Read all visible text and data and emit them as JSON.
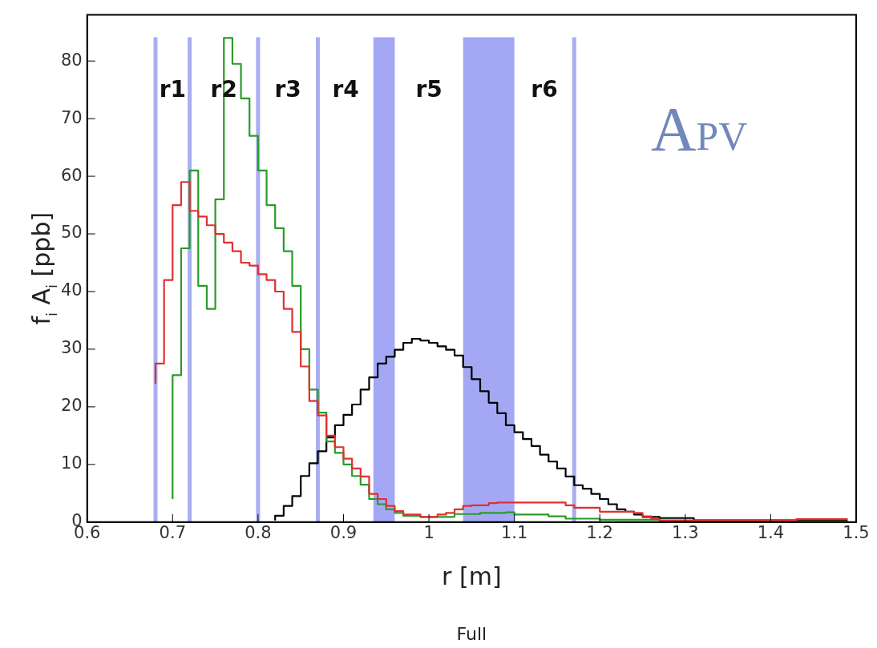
{
  "chart_data": {
    "type": "step",
    "xlabel": "r [m]",
    "ylabel": "f$_{i}$ A$_{i}$ [ppb]",
    "x": [
      0.68,
      0.69,
      0.7,
      0.71,
      0.72,
      0.73,
      0.74,
      0.75,
      0.76,
      0.77,
      0.78,
      0.79,
      0.8,
      0.81,
      0.82,
      0.83,
      0.84,
      0.85,
      0.86,
      0.87,
      0.88,
      0.89,
      0.9,
      0.91,
      0.92,
      0.93,
      0.94,
      0.95,
      0.96,
      0.97,
      0.98,
      0.99,
      1.0,
      1.01,
      1.02,
      1.03,
      1.04,
      1.05,
      1.06,
      1.07,
      1.08,
      1.09,
      1.1,
      1.11,
      1.12,
      1.13,
      1.14,
      1.15,
      1.16,
      1.17,
      1.18,
      1.19,
      1.2,
      1.21,
      1.22,
      1.23,
      1.24,
      1.25,
      1.26,
      1.27,
      1.28,
      1.29,
      1.3,
      1.31,
      1.32,
      1.33,
      1.34,
      1.35,
      1.36,
      1.37,
      1.38,
      1.39,
      1.4,
      1.41,
      1.42,
      1.43,
      1.44,
      1.45,
      1.46,
      1.47,
      1.48,
      1.49
    ],
    "series": [
      {
        "color": "#e03030",
        "values": [
          24,
          27.5,
          42,
          55,
          59,
          54,
          53,
          51.5,
          50,
          48.5,
          47,
          45,
          44.5,
          43,
          42,
          40,
          37,
          33,
          27,
          21,
          18.5,
          15,
          13,
          11,
          9.3,
          7.9,
          4.9,
          4.0,
          2.8,
          1.9,
          1.3,
          1.3,
          0.9,
          0.9,
          1.3,
          1.6,
          2.2,
          2.8,
          2.9,
          2.9,
          3.3,
          3.4,
          3.4,
          3.4,
          3.4,
          3.4,
          3.4,
          3.4,
          3.4,
          2.9,
          2.5,
          2.5,
          2.5,
          1.8,
          1.8,
          1.8,
          1.8,
          1.6,
          1.0,
          0.5,
          0.3,
          0.3,
          0.3,
          0.3,
          0.3,
          0.3,
          0.3,
          0.3,
          0.3,
          0.3,
          0.3,
          0.3,
          0.3,
          0.3,
          0.3,
          0.3,
          0.5,
          0.5,
          0.5,
          0.5,
          0.5,
          0.5
        ]
      },
      {
        "color": "#2a9a2a",
        "values": [
          null,
          null,
          4,
          25.5,
          47.5,
          61,
          41,
          37,
          56,
          84,
          79.5,
          73.5,
          67,
          61,
          55,
          51,
          47,
          41,
          30,
          23,
          19,
          14,
          12,
          10,
          8,
          6.5,
          4.0,
          3.1,
          2.2,
          1.6,
          1.1,
          1.1,
          0.9,
          0.9,
          0.9,
          0.9,
          1.4,
          1.4,
          1.4,
          1.6,
          1.6,
          1.6,
          1.7,
          1.3,
          1.3,
          1.3,
          1.3,
          1.0,
          1.0,
          0.6,
          0.6,
          0.6,
          0.6,
          0.4,
          0.4,
          0.4,
          0.4,
          0.4,
          0.4,
          0.4,
          0.1,
          0.1,
          0.1,
          0.1,
          0.1,
          0.1,
          0.1,
          0.1,
          0.1,
          0.1,
          0.1,
          0.1,
          0.1,
          0.1,
          0.1,
          0.1,
          0.1,
          0.1,
          0.1,
          0.1,
          0.1,
          0.1
        ]
      },
      {
        "color": "#000000",
        "values": [
          null,
          null,
          null,
          null,
          null,
          null,
          null,
          null,
          null,
          null,
          null,
          null,
          null,
          null,
          0.3,
          1.1,
          2.8,
          4.5,
          8,
          10.2,
          12.3,
          14.7,
          16.8,
          18.6,
          20.4,
          23,
          25.1,
          27.5,
          28.7,
          29.9,
          31.1,
          31.8,
          31.5,
          31.1,
          30.5,
          29.9,
          28.9,
          26.9,
          24.8,
          22.7,
          20.7,
          18.9,
          16.8,
          15.6,
          14.4,
          13.2,
          11.7,
          10.5,
          9.3,
          7.9,
          6.4,
          5.8,
          4.9,
          4.0,
          3.1,
          2.2,
          1.8,
          1.3,
          0.9,
          0.9,
          0.7,
          0.7,
          0.7,
          0.7,
          0.3,
          0.3,
          0.3,
          0.3,
          0.3,
          0.3,
          0.3,
          0.3,
          0.3,
          0.3,
          0.3,
          0.3,
          0.3,
          0.3,
          0.3,
          0.3,
          0.3,
          0.3
        ]
      }
    ],
    "xlim": [
      0.6,
      1.5
    ],
    "xticks": [
      0.6,
      0.7,
      0.8,
      0.9,
      1,
      1.1,
      1.2,
      1.3,
      1.4,
      1.5
    ],
    "ylim": [
      0,
      88
    ],
    "yticks": [
      0,
      10,
      20,
      30,
      40,
      50,
      60,
      70,
      80
    ],
    "ref_lines": [
      {
        "axis": "x",
        "value": 0.68,
        "color": "#a9aef0"
      },
      {
        "axis": "x",
        "value": 0.72,
        "color": "#a9aef0"
      },
      {
        "axis": "x",
        "value": 0.8,
        "color": "#a9aef0"
      },
      {
        "axis": "x",
        "value": 0.87,
        "color": "#a9aef0"
      },
      {
        "axis": "x",
        "value": 1.17,
        "color": "#a9aef0"
      }
    ],
    "bands": [
      {
        "axis": "x",
        "from": 0.935,
        "to": 0.96,
        "color": "#a4a8f4"
      },
      {
        "axis": "x",
        "from": 1.04,
        "to": 1.1,
        "color": "#a4a8f4"
      }
    ],
    "annotations": [
      "r1",
      "r2",
      "r3",
      "r4",
      "r5",
      "r6",
      "APV",
      "Full"
    ],
    "grid": false,
    "legend": false
  }
}
